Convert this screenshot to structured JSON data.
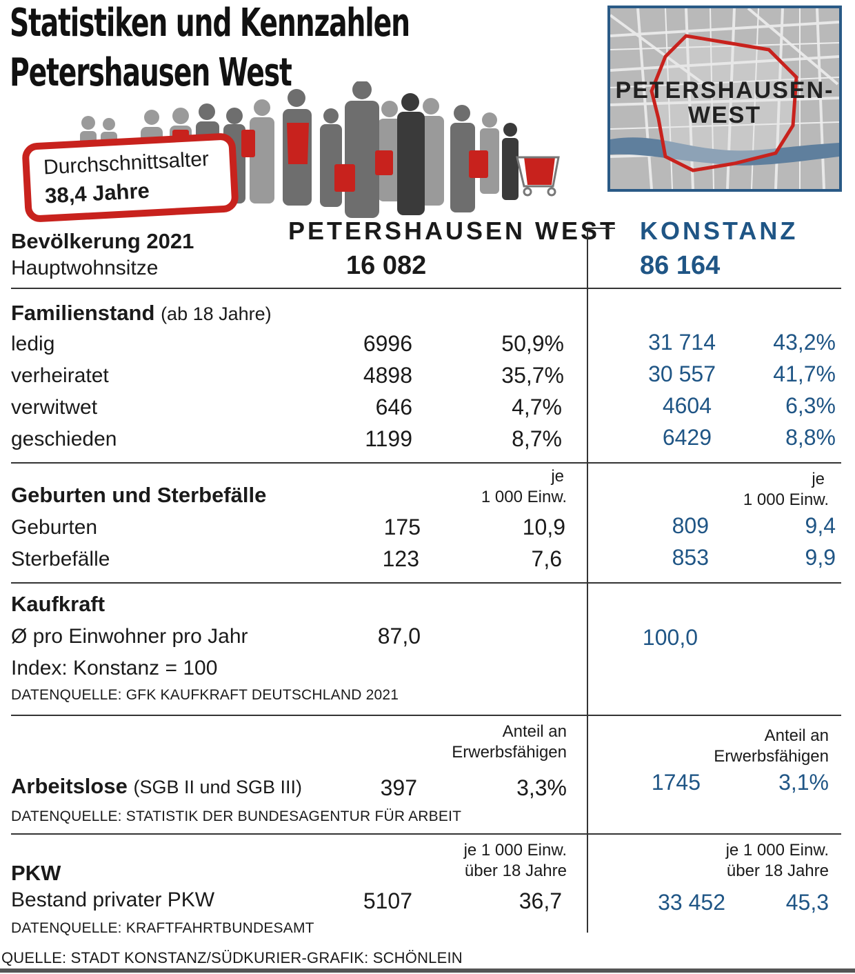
{
  "header": {
    "title_line1": "Statistiken und Kennzahlen",
    "title_line2": "Petershausen West",
    "badge_line1": "Durchschnittsalter",
    "badge_line2": "38,4 Jahre",
    "map_label_line1": "PETERSHAUSEN-",
    "map_label_line2": "WEST",
    "map_icon": "district-map-illustration",
    "people_icon": "crowd-silhouette-illustration"
  },
  "colors": {
    "accent_red": "#c8221d",
    "konstanz_blue": "#1f5585",
    "map_frame": "#2a5a86"
  },
  "columns": {
    "left_title": "PETERSHAUSEN WEST",
    "right_title": "KONSTANZ"
  },
  "population": {
    "title": "Bevölkerung 2021",
    "subtitle": "Hauptwohnsitze",
    "west_total": "16 082",
    "konstanz_total": "86 164"
  },
  "familienstand": {
    "title": "Familienstand",
    "subtitle": "(ab 18 Jahre)",
    "rows": [
      {
        "label": "ledig",
        "west_n": "6996",
        "west_p": "50,9%",
        "k_n": "31 714",
        "k_p": "43,2%"
      },
      {
        "label": "verheiratet",
        "west_n": "4898",
        "west_p": "35,7%",
        "k_n": "30 557",
        "k_p": "41,7%"
      },
      {
        "label": "verwitwet",
        "west_n": "646",
        "west_p": "4,7%",
        "k_n": "4604",
        "k_p": "6,3%"
      },
      {
        "label": "geschieden",
        "west_n": "1199",
        "west_p": "8,7%",
        "k_n": "6429",
        "k_p": "8,8%"
      }
    ]
  },
  "geburten": {
    "title": "Geburten und Sterbefälle",
    "rate_label_1": "je",
    "rate_label_2": "1 000 Einw.",
    "rows": [
      {
        "label": "Geburten",
        "west_n": "175",
        "west_r": "10,9",
        "k_n": "809",
        "k_r": "9,4"
      },
      {
        "label": "Sterbefälle",
        "west_n": "123",
        "west_r": "7,6",
        "k_n": "853",
        "k_r": "9,9"
      }
    ]
  },
  "kaufkraft": {
    "title": "Kaufkraft",
    "line1": "Ø pro Einwohner pro Jahr",
    "line2": "Index: Konstanz = 100",
    "west_value": "87,0",
    "konstanz_value": "100,0",
    "source": "DATENQUELLE: GFK KAUFKRAFT DEUTSCHLAND 2021"
  },
  "arbeitslose": {
    "title": "Arbeitslose",
    "subtitle": "(SGB II und SGB III)",
    "share_label_1": "Anteil an",
    "share_label_2": "Erwerbsfähigen",
    "west_n": "397",
    "west_p": "3,3%",
    "k_n": "1745",
    "k_p": "3,1%",
    "source": "DATENQUELLE: STATISTIK DER BUNDESAGENTUR FÜR ARBEIT"
  },
  "pkw": {
    "title": "PKW",
    "line1": "Bestand privater PKW",
    "rate_label_1": "je 1 000 Einw.",
    "rate_label_2": "über 18 Jahre",
    "west_n": "5107",
    "west_r": "36,7",
    "k_n": "33 452",
    "k_r": "45,3",
    "source": "DATENQUELLE: KRAFTFAHRTBUNDESAMT"
  },
  "footer": {
    "source": "QUELLE: STADT KONSTANZ/SÜDKURIER-GRAFIK: SCHÖNLEIN"
  }
}
